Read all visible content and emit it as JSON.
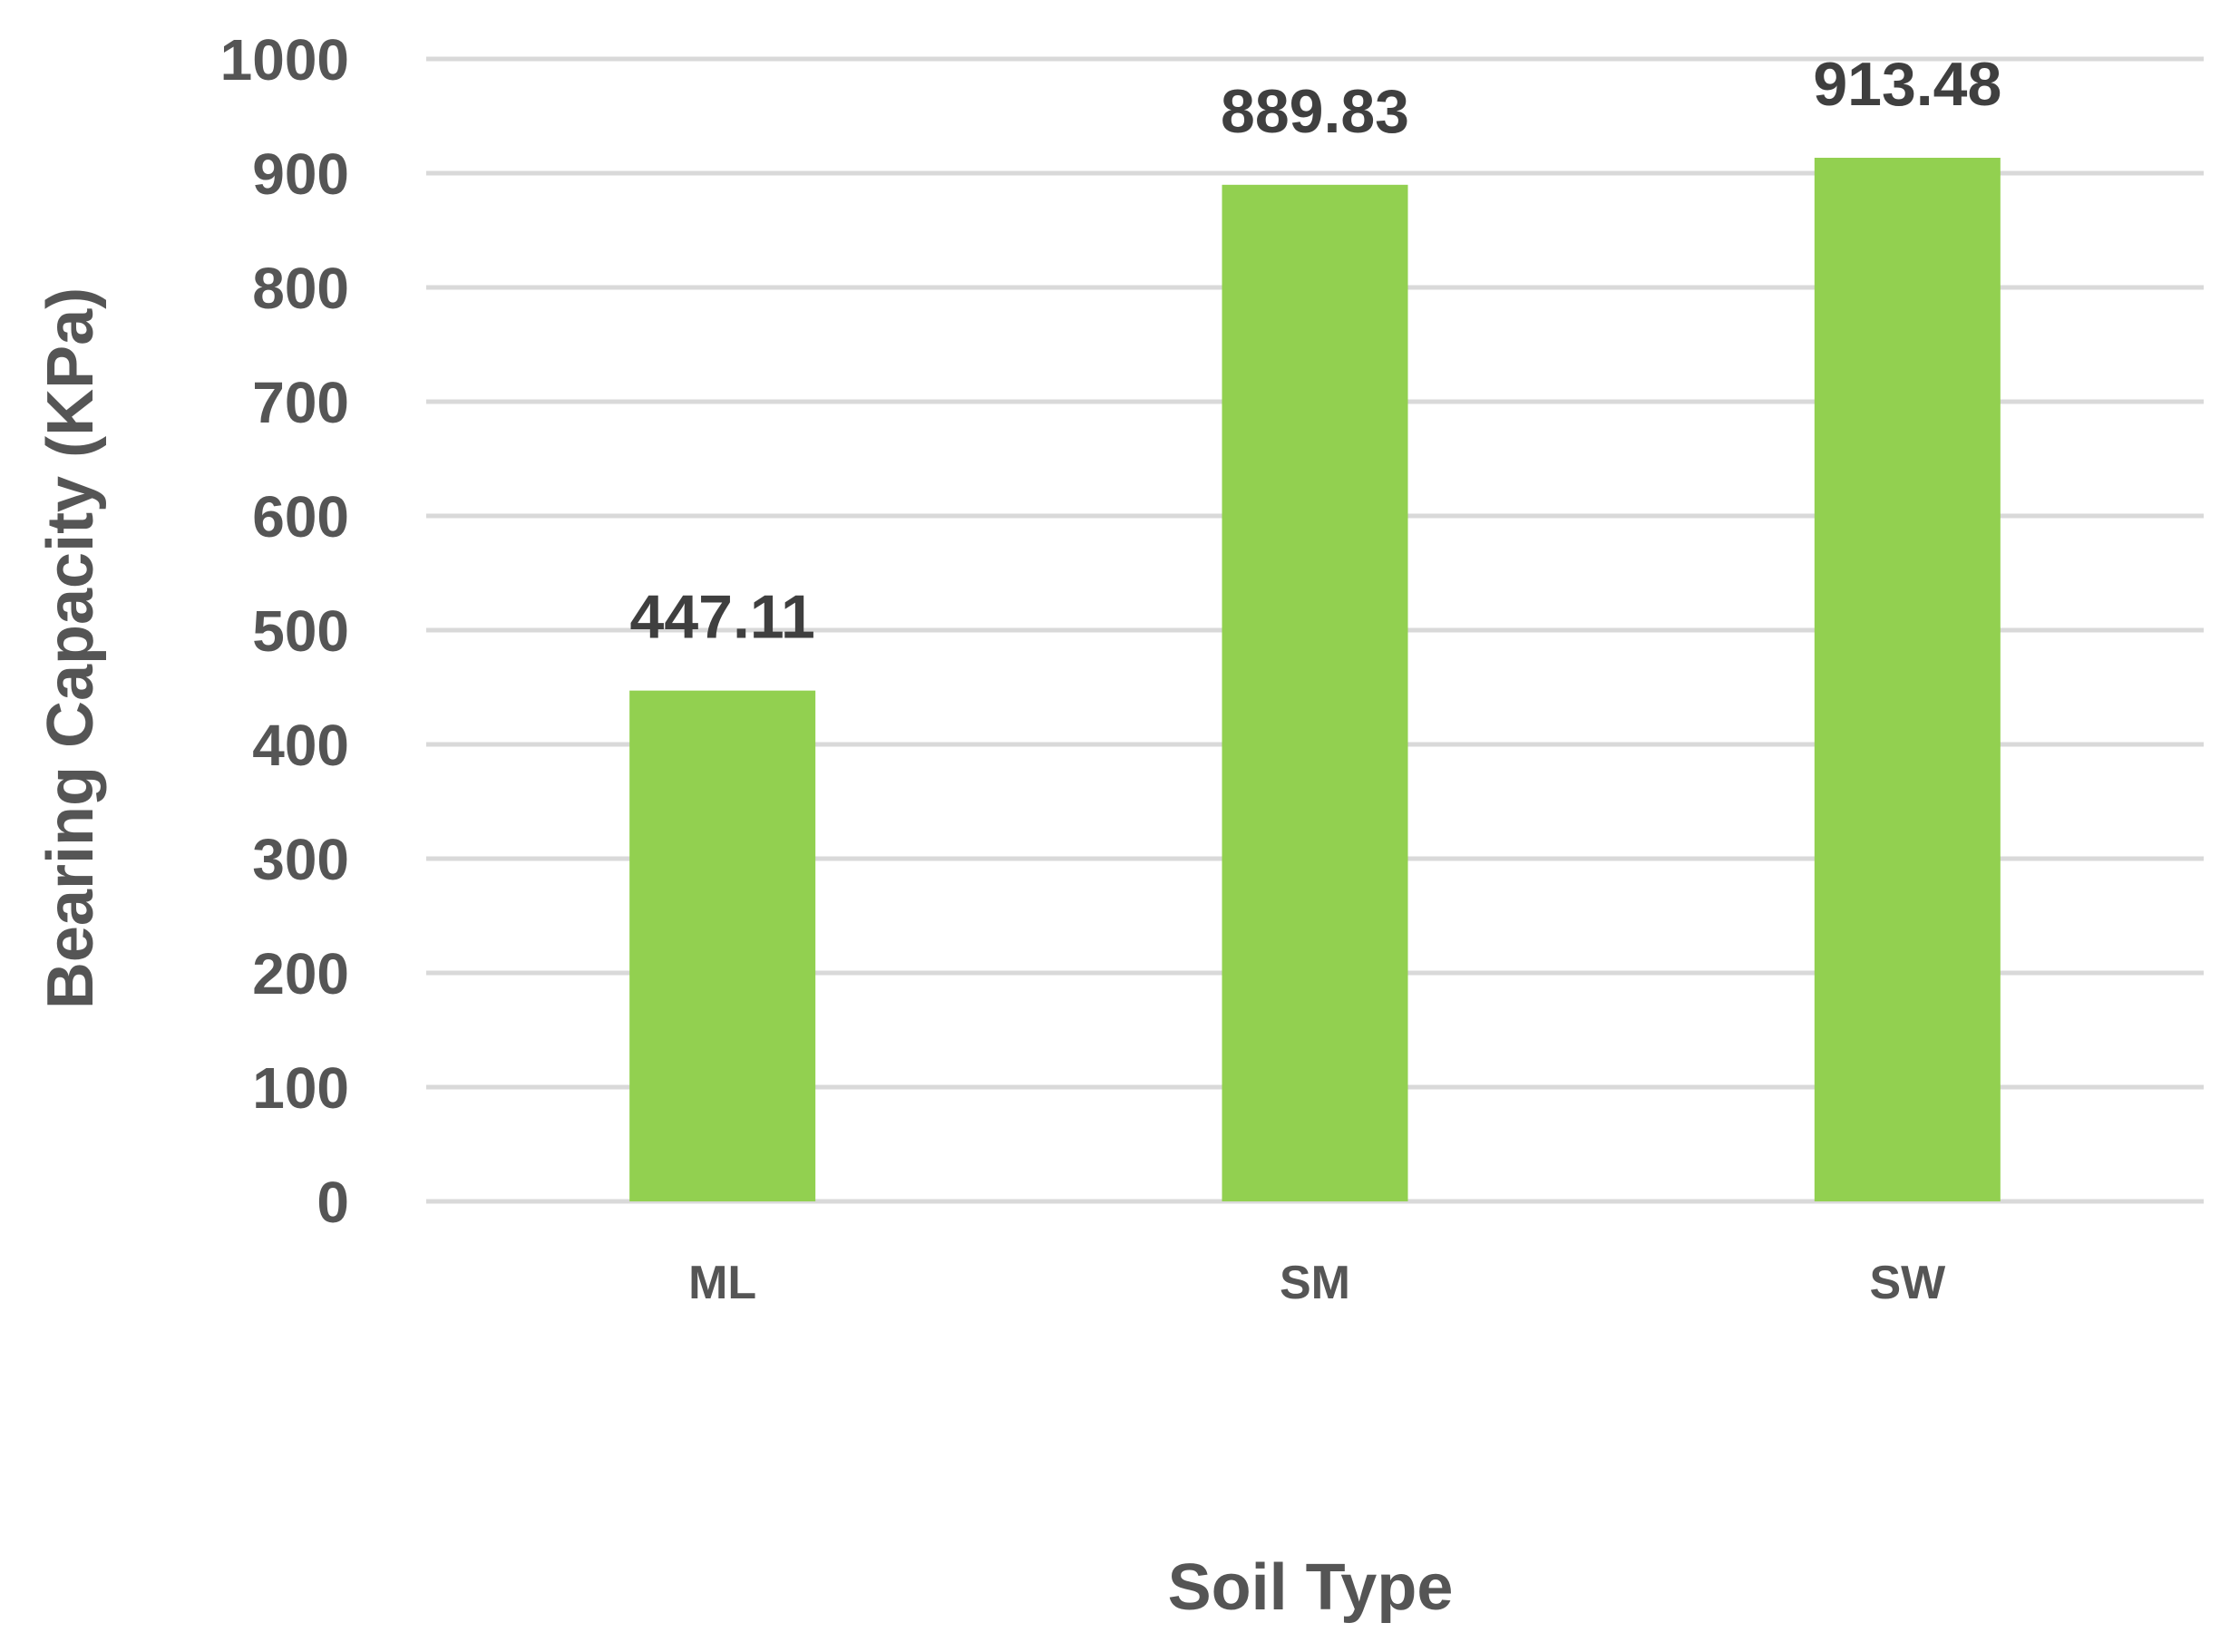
{
  "chart_data": {
    "type": "bar",
    "categories": [
      "ML",
      "SM",
      "SW"
    ],
    "values": [
      447.11,
      889.83,
      913.48
    ],
    "value_labels": [
      "447.11",
      "889.83",
      "913.48"
    ],
    "title": "",
    "xlabel": "Soil Type",
    "ylabel": "Bearing Capacity (KPa)",
    "ylim": [
      0,
      1000
    ],
    "yticks": [
      0,
      100,
      200,
      300,
      400,
      500,
      600,
      700,
      800,
      900,
      1000
    ],
    "grid": true,
    "legend": "none",
    "bar_color": "#92d050",
    "grid_color": "#d9d9d9",
    "text_color": "#555555",
    "data_label_color": "#3f3f3f"
  }
}
